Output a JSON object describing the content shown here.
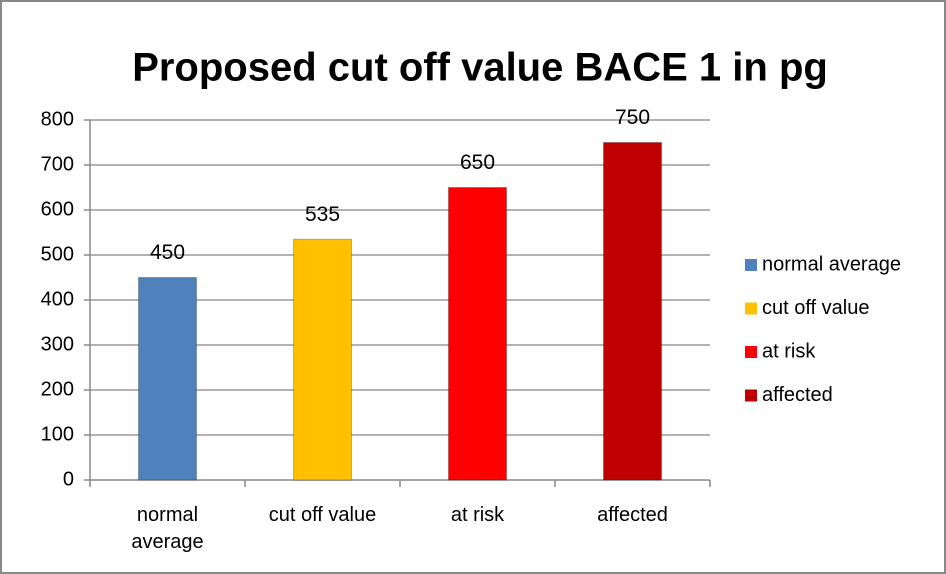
{
  "chart_data": {
    "type": "bar",
    "title": "Proposed cut off value BACE 1 in pg",
    "categories": [
      "normal average",
      "cut off value",
      "at risk",
      "affected"
    ],
    "values": [
      450,
      535,
      650,
      750
    ],
    "colors": [
      "#4f81bd",
      "#ffc000",
      "#ff0000",
      "#c00000"
    ],
    "ylim": [
      0,
      800
    ],
    "yticks": [
      0,
      100,
      200,
      300,
      400,
      500,
      600,
      700,
      800
    ],
    "grid": true,
    "legend": "right"
  }
}
